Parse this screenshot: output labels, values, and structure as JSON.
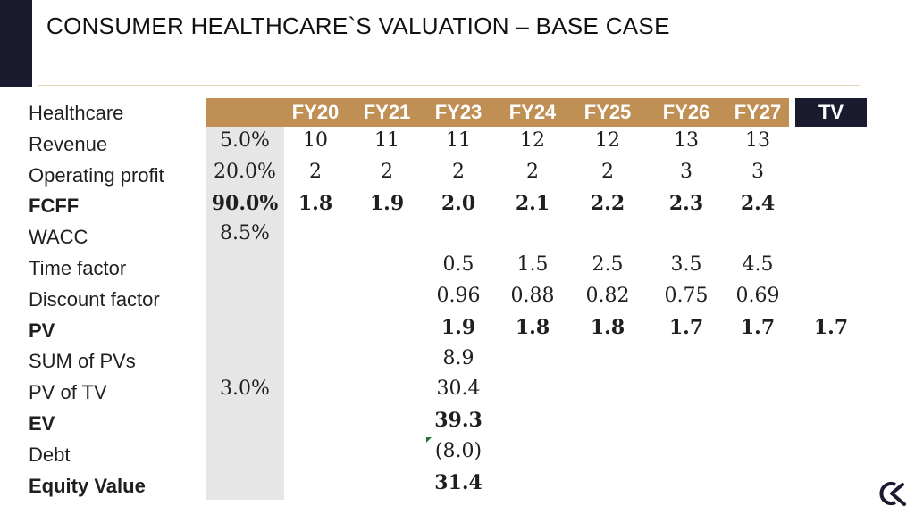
{
  "title": "CONSUMER HEALTHCARE`S VALUATION – BASE CASE",
  "header": {
    "label": "Healthcare",
    "columns": [
      "FY20",
      "FY21",
      "FY23",
      "FY24",
      "FY25",
      "FY26",
      "FY27",
      "TV"
    ]
  },
  "rows": [
    {
      "label": "Revenue",
      "assumption": "5.0%",
      "values": [
        "10",
        "11",
        "11",
        "12",
        "12",
        "13",
        "13",
        ""
      ],
      "bold": false
    },
    {
      "label": "Operating profit",
      "assumption": "20.0%",
      "values": [
        "2",
        "2",
        "2",
        "2",
        "2",
        "3",
        "3",
        ""
      ],
      "bold": false
    },
    {
      "label": "FCFF",
      "assumption": "90.0%",
      "values": [
        "1.8",
        "1.9",
        "2.0",
        "2.1",
        "2.2",
        "2.3",
        "2.4",
        ""
      ],
      "bold": true
    },
    {
      "label": "WACC",
      "assumption": "8.5%",
      "values": [
        "",
        "",
        "",
        "",
        "",
        "",
        "",
        ""
      ],
      "bold": false
    },
    {
      "label": "Time factor",
      "assumption": "",
      "values": [
        "",
        "",
        "0.5",
        "1.5",
        "2.5",
        "3.5",
        "4.5",
        ""
      ],
      "bold": false
    },
    {
      "label": "Discount factor",
      "assumption": "",
      "values": [
        "",
        "",
        "0.96",
        "0.88",
        "0.82",
        "0.75",
        "0.69",
        ""
      ],
      "bold": false
    },
    {
      "label": "PV",
      "assumption": "",
      "values": [
        "",
        "",
        "1.9",
        "1.8",
        "1.8",
        "1.7",
        "1.7",
        "1.7"
      ],
      "bold": true
    },
    {
      "label": "SUM of PVs",
      "assumption": "",
      "values": [
        "",
        "",
        "8.9",
        "",
        "",
        "",
        "",
        ""
      ],
      "bold": false
    },
    {
      "label": "PV of TV",
      "assumption": "3.0%",
      "values": [
        "",
        "",
        "30.4",
        "",
        "",
        "",
        "",
        ""
      ],
      "bold": false
    },
    {
      "label": "EV",
      "assumption": "",
      "values": [
        "",
        "",
        "39.3",
        "",
        "",
        "",
        "",
        ""
      ],
      "bold": true
    },
    {
      "label": "Debt",
      "assumption": "",
      "values": [
        "",
        "",
        "(8.0)",
        "",
        "",
        "",
        "",
        ""
      ],
      "bold": false
    },
    {
      "label": "Equity Value",
      "assumption": "",
      "values": [
        "",
        "",
        "31.4",
        "",
        "",
        "",
        "",
        ""
      ],
      "bold": true
    }
  ],
  "colors": {
    "header_band": "#c08f54",
    "tv_band": "#1b1b2f",
    "assumption_band": "#e6e6e6"
  },
  "logo_icon": "company-logo-icon"
}
